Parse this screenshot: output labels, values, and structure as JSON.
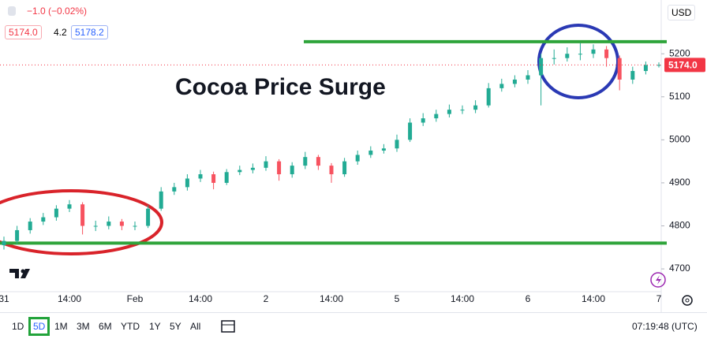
{
  "chart_data": {
    "type": "candlestick",
    "title": "Cocoa Price Surge",
    "categories": [
      "31",
      null,
      null,
      null,
      null,
      "14:00",
      null,
      null,
      null,
      null,
      "Feb",
      null,
      null,
      null,
      null,
      "14:00",
      null,
      null,
      null,
      null,
      "2",
      null,
      null,
      null,
      null,
      "14:00",
      null,
      null,
      null,
      null,
      "5",
      null,
      null,
      null,
      null,
      "14:00",
      null,
      null,
      null,
      null,
      "6",
      null,
      null,
      null,
      null,
      "14:00",
      null,
      null,
      null,
      null,
      "7"
    ],
    "open": [
      4755,
      4765,
      4790,
      4810,
      4820,
      4840,
      4850,
      4800,
      4800,
      4810,
      4800,
      4800,
      4840,
      4880,
      4890,
      4910,
      4920,
      4900,
      4925,
      4930,
      4935,
      4950,
      4920,
      4940,
      4960,
      4940,
      4920,
      4950,
      4965,
      4975,
      4980,
      5000,
      5040,
      5050,
      5060,
      5070,
      5070,
      5080,
      5120,
      5130,
      5140,
      5150,
      5190,
      5190,
      5200,
      5200,
      5210,
      5190,
      5140,
      5160,
      5174
    ],
    "high": [
      4775,
      4800,
      4818,
      4830,
      4848,
      4860,
      4855,
      4812,
      4822,
      4816,
      4810,
      4848,
      4890,
      4900,
      4920,
      4930,
      4926,
      4932,
      4940,
      4945,
      4962,
      4955,
      4948,
      4972,
      4965,
      4946,
      4958,
      4975,
      4985,
      4990,
      5012,
      5050,
      5062,
      5070,
      5082,
      5080,
      5092,
      5132,
      5142,
      5150,
      5162,
      5200,
      5210,
      5215,
      5225,
      5222,
      5218,
      5196,
      5170,
      5182,
      5180
    ],
    "low": [
      4745,
      4758,
      4782,
      4802,
      4812,
      4832,
      4780,
      4788,
      4792,
      4790,
      4790,
      4795,
      4835,
      4872,
      4882,
      4902,
      4885,
      4895,
      4918,
      4922,
      4928,
      4905,
      4912,
      4932,
      4930,
      4900,
      4914,
      4942,
      4958,
      4968,
      4972,
      4995,
      5032,
      5042,
      5052,
      5060,
      5062,
      5075,
      5112,
      5122,
      5130,
      5080,
      5175,
      5182,
      5185,
      5190,
      5170,
      5115,
      5130,
      5152,
      5168
    ],
    "close": [
      4765,
      4790,
      4810,
      4820,
      4840,
      4850,
      4800,
      4800,
      4810,
      4800,
      4800,
      4840,
      4880,
      4890,
      4910,
      4920,
      4900,
      4925,
      4930,
      4935,
      4950,
      4920,
      4940,
      4960,
      4940,
      4920,
      4950,
      4965,
      4975,
      4980,
      5000,
      5040,
      5050,
      5060,
      5070,
      5070,
      5080,
      5120,
      5130,
      5140,
      5150,
      5190,
      5190,
      5200,
      5200,
      5210,
      5190,
      5140,
      5160,
      5174,
      5174
    ],
    "up_color": "#22ab94",
    "down_color": "#f7525f",
    "ylim": [
      4647,
      5325
    ],
    "yticks": [
      4700,
      4800,
      4900,
      5000,
      5100,
      5200
    ],
    "grid": false,
    "levels": [
      5228,
      4760
    ],
    "level_color": "#2ea43a",
    "last_price": {
      "value": 5174,
      "label": "5174.0"
    },
    "last_price_color": "#f23645"
  },
  "quote": {
    "change": "−1.0 (−0.02%)",
    "bid": "5174.0",
    "spread": "4.2",
    "ask": "5178.2",
    "currency": "USD"
  },
  "toolbar": {
    "ranges": [
      "1D",
      "5D",
      "1M",
      "3M",
      "6M",
      "YTD",
      "1Y",
      "5Y",
      "All"
    ],
    "selected": 1,
    "clock": "07:19:48 (UTC)"
  }
}
